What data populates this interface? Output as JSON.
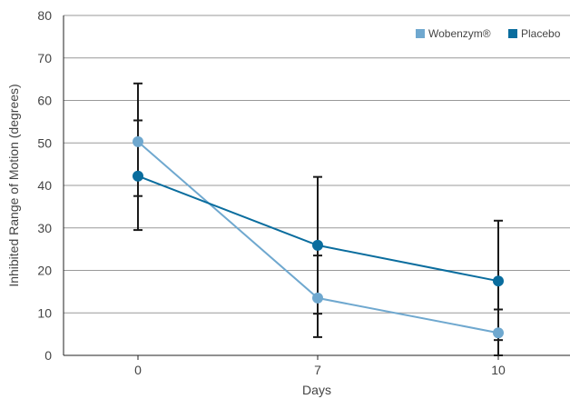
{
  "chart_data": {
    "type": "line",
    "title": "",
    "xlabel": "Days",
    "ylabel": "Inhibited Range of Motion (degrees)",
    "categories": [
      "0",
      "7",
      "10"
    ],
    "ylim": [
      0,
      80
    ],
    "yticks": [
      0,
      10,
      20,
      30,
      40,
      50,
      60,
      70,
      80
    ],
    "grid": "horizontal",
    "legend_position": "top-right",
    "series": [
      {
        "name": "Wobenzym®",
        "color": "#6fa8cf",
        "values": [
          50.3,
          13.5,
          5.3
        ],
        "error_upper": [
          64.0,
          23.5,
          10.8
        ],
        "error_lower": [
          37.5,
          4.3,
          0
        ]
      },
      {
        "name": "Placebo",
        "color": "#0a6d9e",
        "values": [
          42.2,
          25.9,
          17.5
        ],
        "error_upper": [
          55.3,
          42.0,
          31.7
        ],
        "error_lower": [
          29.5,
          9.8,
          3.6
        ]
      }
    ]
  }
}
